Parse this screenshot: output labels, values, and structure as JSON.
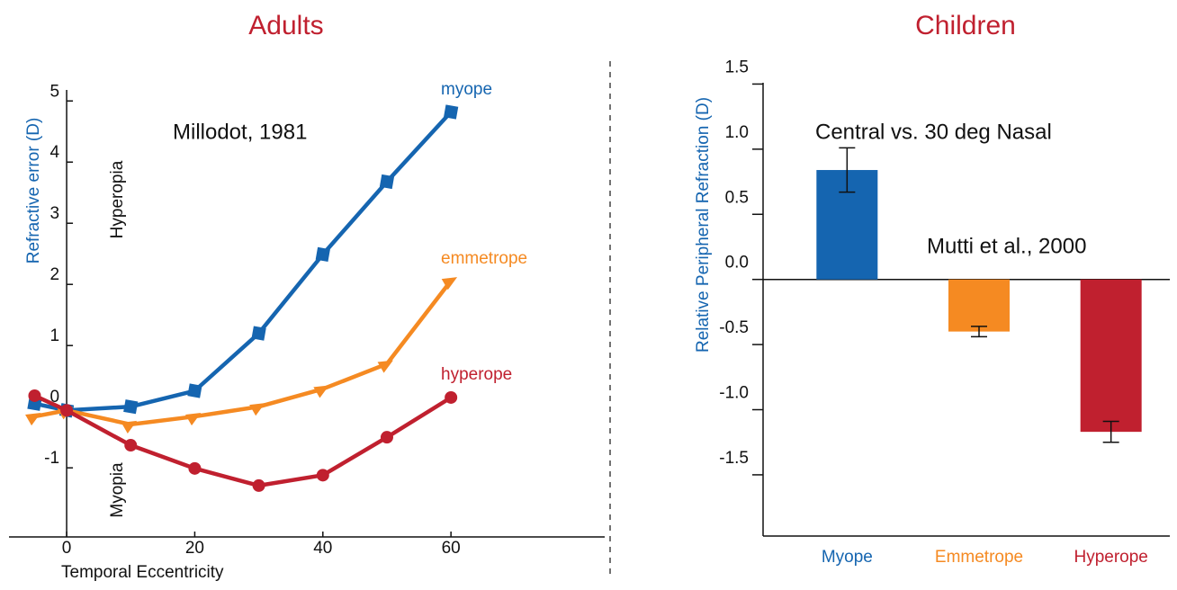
{
  "chart_data": [
    {
      "type": "line",
      "title": "Adults",
      "x_label": "Temporal Eccentricity",
      "y_label": "Refractive error (D)",
      "annotations": [
        "Millodot, 1981",
        "Hyperopia",
        "Myopia"
      ],
      "x": [
        -5,
        0,
        10,
        20,
        30,
        40,
        50,
        60
      ],
      "series": [
        {
          "name": "myope",
          "color": "#1565b0",
          "marker": "square",
          "values": [
            0.05,
            -0.06,
            0,
            0.26,
            1.2,
            2.49,
            3.68,
            4.82
          ]
        },
        {
          "name": "emmetrope",
          "color": "#f58a22",
          "marker": "triangle",
          "values": [
            -0.16,
            -0.06,
            -0.29,
            -0.16,
            0,
            0.29,
            0.7,
            2.06
          ]
        },
        {
          "name": "hyperope",
          "color": "#c0202f",
          "marker": "circle",
          "values": [
            0.18,
            -0.06,
            -0.63,
            -1.01,
            -1.29,
            -1.12,
            -0.5,
            0.15
          ]
        }
      ],
      "xlim": [
        -9,
        84
      ],
      "xticks": [
        0,
        20,
        40,
        60
      ],
      "ylim": [
        -2.13,
        5.18
      ],
      "yticks": [
        -1,
        0,
        1,
        2,
        3,
        4,
        5
      ]
    },
    {
      "type": "bar",
      "title": "Children",
      "y_label": "Relative Peripheral Refraction (D)",
      "annotations": [
        "Central vs. 30 deg Nasal",
        "Mutti et al., 2000"
      ],
      "categories": [
        "Myope",
        "Emmetrope",
        "Hyperope"
      ],
      "values": [
        0.84,
        -0.4,
        -1.17
      ],
      "errors": [
        0.17,
        0.04,
        0.08
      ],
      "colors": [
        "#1565b0",
        "#f58a22",
        "#c0202f"
      ],
      "ylim": [
        -1.97,
        1.51
      ],
      "yticks": [
        -1.5,
        {
          "value": -1,
          "label": "-1.0"
        },
        -0.5,
        {
          "value": 0,
          "label": "0.0"
        },
        0.5,
        {
          "value": 1,
          "label": "1.0"
        },
        1.5
      ]
    }
  ]
}
